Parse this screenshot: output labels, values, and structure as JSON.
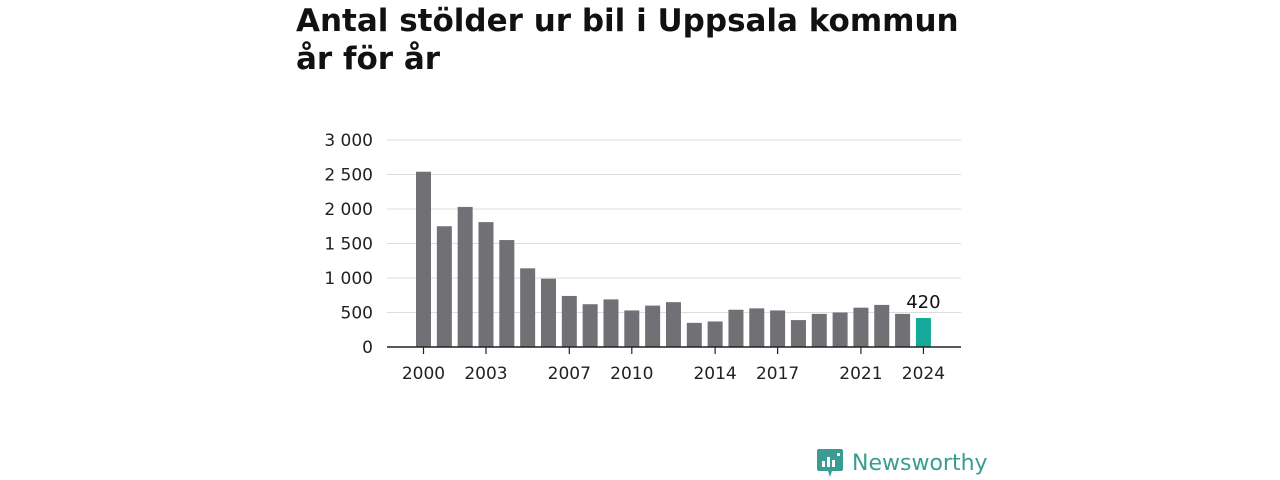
{
  "chart_data": {
    "type": "bar",
    "title": "Antal stölder ur bil i Uppsala kommun år för år",
    "categories": [
      "2000",
      "2001",
      "2002",
      "2003",
      "2004",
      "2005",
      "2006",
      "2007",
      "2008",
      "2009",
      "2010",
      "2011",
      "2012",
      "2013",
      "2014",
      "2015",
      "2016",
      "2017",
      "2018",
      "2019",
      "2020",
      "2021",
      "2022",
      "2023",
      "2024"
    ],
    "values": [
      2540,
      1750,
      2030,
      1810,
      1550,
      1140,
      990,
      740,
      620,
      690,
      530,
      600,
      650,
      350,
      370,
      540,
      560,
      530,
      390,
      480,
      500,
      570,
      610,
      480,
      420
    ],
    "x_tick_labels": [
      "2000",
      "2003",
      "2007",
      "2010",
      "2014",
      "2017",
      "2021",
      "2024"
    ],
    "y_tick_labels": [
      "0",
      "500",
      "1 000",
      "1 500",
      "2 000",
      "2 500",
      "3 000"
    ],
    "ylim": [
      0,
      3000
    ],
    "highlight_index": 24,
    "highlight_label": "420",
    "colors": {
      "bar": "#707075",
      "highlight": "#15a99b",
      "grid": "#dddddd",
      "axis": "#222222"
    },
    "grid": true
  },
  "brand": {
    "name": "Newsworthy",
    "icon": "newsworthy-logo-icon"
  }
}
